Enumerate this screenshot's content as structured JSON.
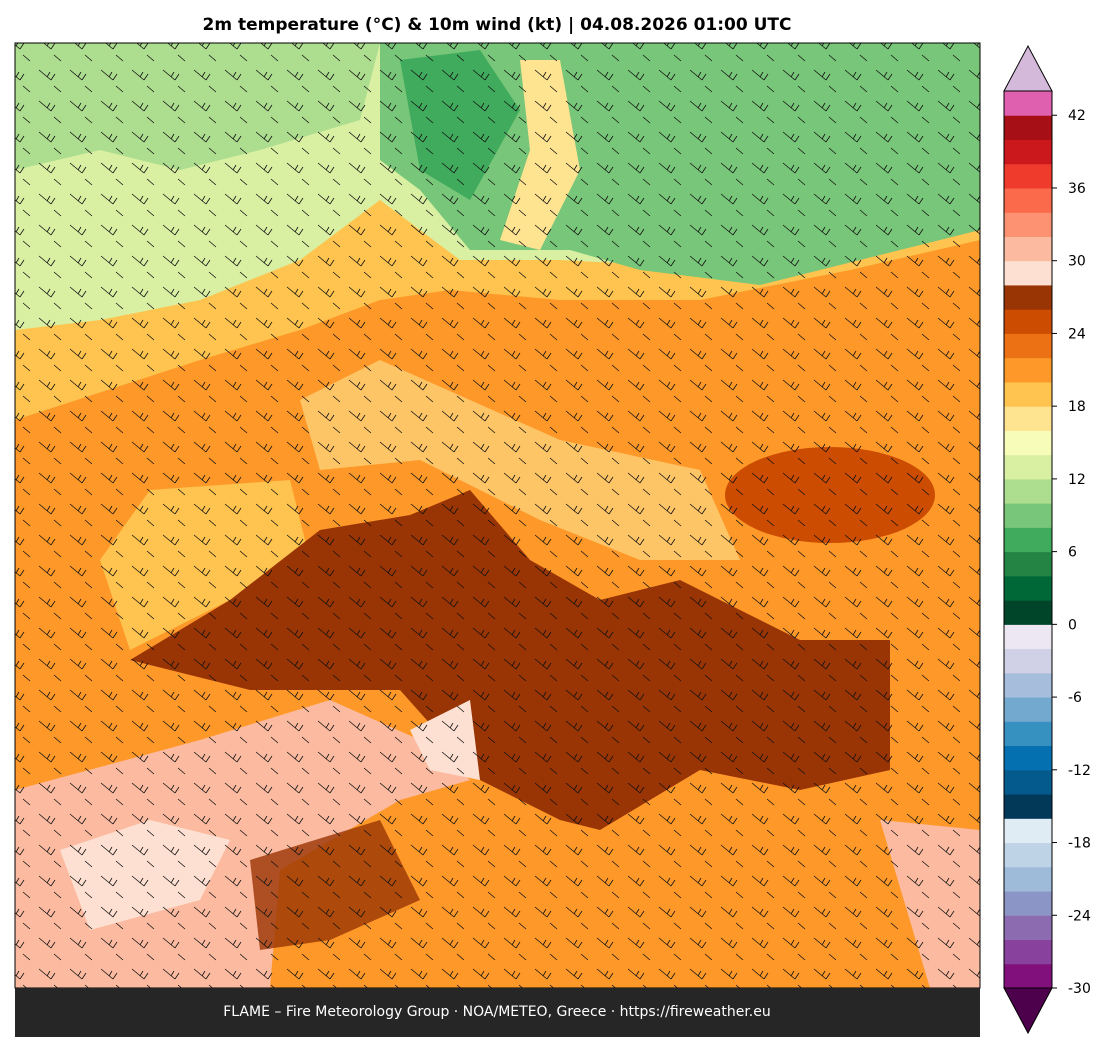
{
  "title": "2m temperature (°C) & 10m wind (kt)  |  04.08.2026 01:00 UTC",
  "footer": "FLAME – Fire Meteorology Group · NOA/METEO, Greece · https://fireweather.eu",
  "colorbar": {
    "vlim": [
      -30,
      44
    ],
    "ticks": [
      -30,
      -24,
      -18,
      -12,
      -6,
      0,
      6,
      12,
      18,
      24,
      30,
      36,
      42
    ],
    "under_color": "#4d004b",
    "over_color": "#d4b9da",
    "colors": [
      "#810f7c",
      "#88419d",
      "#8c6bb1",
      "#8c96c6",
      "#9ebcda",
      "#bfd3e6",
      "#e0ecf4",
      "#023858",
      "#045a8d",
      "#0570b0",
      "#3690c0",
      "#74a9cf",
      "#a6bddb",
      "#d0d1e6",
      "#ece7f2",
      "#004529",
      "#006837",
      "#238443",
      "#41ab5d",
      "#78c679",
      "#addd8e",
      "#d9f0a3",
      "#f7fcb9",
      "#fee391",
      "#fec44f",
      "#fe9929",
      "#ec7014",
      "#cc4c02",
      "#993404",
      "#fee0d2",
      "#fcbba1",
      "#fc9272",
      "#fb6a4a",
      "#ef3b2c",
      "#cb181d",
      "#a50f15",
      "#e060b0"
    ]
  }
}
